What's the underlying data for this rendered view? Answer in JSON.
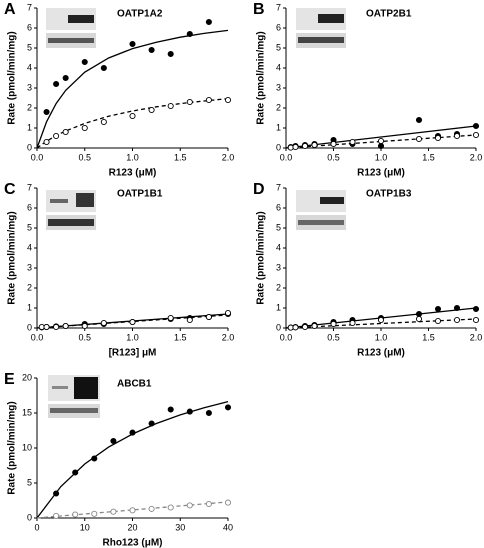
{
  "chart_data": [
    {
      "type": "scatter",
      "letter": "A",
      "title": "OATP1A2",
      "x_label": "R123 (μM)",
      "y_label": "Rate (pmol/min/mg)",
      "x": [
        0.1,
        0.2,
        0.3,
        0.5,
        0.7,
        1.0,
        1.2,
        1.4,
        1.6,
        1.8,
        2.0
      ],
      "series": [
        {
          "marker": "filled",
          "color": "#000000",
          "values": [
            1.8,
            3.2,
            3.5,
            4.3,
            4.0,
            5.2,
            4.9,
            4.7,
            5.7,
            6.3,
            null
          ]
        },
        {
          "marker": "open",
          "color": "#000000",
          "values": [
            0.3,
            0.6,
            0.8,
            1.0,
            1.3,
            1.6,
            1.9,
            2.1,
            2.3,
            2.4,
            2.4
          ]
        }
      ],
      "fits": [
        {
          "dashed": false,
          "color": "#000000",
          "x": [
            0,
            0.1,
            0.2,
            0.3,
            0.5,
            0.75,
            1,
            1.25,
            1.5,
            1.75,
            2
          ],
          "values": [
            0,
            1.31,
            2.22,
            2.88,
            3.79,
            4.5,
            4.97,
            5.29,
            5.54,
            5.73,
            5.88
          ]
        },
        {
          "dashed": true,
          "color": "#000000",
          "x": [
            0,
            0.1,
            0.2,
            0.3,
            0.5,
            0.75,
            1,
            1.25,
            1.5,
            1.75,
            2
          ],
          "values": [
            0,
            0.34,
            0.62,
            0.85,
            1.23,
            1.59,
            1.85,
            2.06,
            2.22,
            2.35,
            2.47
          ]
        }
      ],
      "xlim": [
        0,
        2
      ],
      "xticks": [
        {
          "value": 0,
          "label": "0.0"
        },
        0.5,
        {
          "value": 1,
          "label": "1.0"
        },
        1.5,
        {
          "value": 2,
          "label": "2.0"
        }
      ],
      "ylim": [
        0,
        7
      ],
      "yticks": [
        0,
        1,
        2,
        3,
        4,
        5,
        6,
        7
      ]
    },
    {
      "type": "scatter",
      "letter": "B",
      "title": "OATP2B1",
      "x_label": "R123 (μM)",
      "y_label": "Rate (pmol/min/mg)",
      "x": [
        0.05,
        0.1,
        0.2,
        0.3,
        0.5,
        0.7,
        1.0,
        1.4,
        1.6,
        1.8,
        2.0
      ],
      "series": [
        {
          "marker": "filled",
          "color": "#000000",
          "values": [
            0.05,
            0.1,
            0.15,
            0.2,
            0.4,
            0.2,
            0.1,
            1.4,
            0.6,
            0.7,
            1.1
          ]
        },
        {
          "marker": "open",
          "color": "#000000",
          "values": [
            0.02,
            0.05,
            0.1,
            0.15,
            0.2,
            0.3,
            0.35,
            0.45,
            0.5,
            0.6,
            0.65
          ]
        }
      ],
      "fits": [
        {
          "dashed": false,
          "color": "#000000",
          "x": [
            0,
            2
          ],
          "values": [
            0,
            1.1
          ]
        },
        {
          "dashed": true,
          "color": "#000000",
          "x": [
            0,
            2
          ],
          "values": [
            0,
            0.65
          ]
        }
      ],
      "xlim": [
        0,
        2
      ],
      "xticks": [
        {
          "value": 0,
          "label": "0.0"
        },
        0.5,
        {
          "value": 1,
          "label": "1.0"
        },
        1.5,
        {
          "value": 2,
          "label": "2.0"
        }
      ],
      "ylim": [
        0,
        7
      ],
      "yticks": [
        0,
        1,
        2,
        3,
        4,
        5,
        6,
        7
      ]
    },
    {
      "type": "scatter",
      "letter": "C",
      "title": "OATP1B1",
      "x_label": "[R123] μM",
      "y_label": "Rate (pmol/min/mg)",
      "x": [
        0.05,
        0.1,
        0.2,
        0.3,
        0.5,
        0.7,
        1.0,
        1.4,
        1.6,
        1.8,
        2.0
      ],
      "series": [
        {
          "marker": "filled",
          "color": "#000000",
          "values": [
            0.03,
            0.05,
            0.08,
            0.1,
            0.2,
            0.2,
            0.3,
            0.45,
            0.5,
            0.55,
            0.7
          ]
        },
        {
          "marker": "open",
          "color": "#000000",
          "values": [
            0.05,
            0.05,
            0.05,
            0.1,
            0.1,
            0.25,
            0.3,
            0.5,
            0.4,
            0.55,
            0.75
          ]
        }
      ],
      "fits": [
        {
          "dashed": false,
          "color": "#000000",
          "x": [
            0,
            2
          ],
          "values": [
            0,
            0.7
          ]
        },
        {
          "dashed": true,
          "color": "#000000",
          "x": [
            0,
            2
          ],
          "values": [
            0,
            0.65
          ]
        }
      ],
      "xlim": [
        0,
        2
      ],
      "xticks": [
        {
          "value": 0,
          "label": "0.0"
        },
        0.5,
        {
          "value": 1,
          "label": "1.0"
        },
        1.5,
        {
          "value": 2,
          "label": "2.0"
        }
      ],
      "ylim": [
        0,
        7
      ],
      "yticks": [
        0,
        1,
        2,
        3,
        4,
        5,
        6,
        7
      ]
    },
    {
      "type": "scatter",
      "letter": "D",
      "title": "OATP1B3",
      "x_label": "R123 (μM)",
      "y_label": "Rate (pmol/min/mg)",
      "x": [
        0.05,
        0.1,
        0.2,
        0.3,
        0.5,
        0.7,
        1.0,
        1.4,
        1.6,
        1.8,
        2.0
      ],
      "series": [
        {
          "marker": "filled",
          "color": "#000000",
          "values": [
            0.02,
            0.05,
            0.1,
            0.15,
            0.3,
            0.4,
            0.5,
            0.7,
            0.95,
            1.0,
            0.95
          ]
        },
        {
          "marker": "open",
          "color": "#000000",
          "values": [
            0.02,
            0.03,
            0.05,
            0.1,
            0.2,
            0.25,
            0.4,
            0.45,
            0.35,
            0.4,
            0.4
          ]
        }
      ],
      "fits": [
        {
          "dashed": false,
          "color": "#000000",
          "x": [
            0,
            2
          ],
          "values": [
            0,
            1.0
          ]
        },
        {
          "dashed": true,
          "color": "#000000",
          "x": [
            0,
            2
          ],
          "values": [
            0,
            0.45
          ]
        }
      ],
      "xlim": [
        0,
        2
      ],
      "xticks": [
        {
          "value": 0,
          "label": "0.0"
        },
        0.5,
        {
          "value": 1,
          "label": "1.0"
        },
        1.5,
        {
          "value": 2,
          "label": "2.0"
        }
      ],
      "ylim": [
        0,
        7
      ],
      "yticks": [
        0,
        1,
        2,
        3,
        4,
        5,
        6,
        7
      ]
    },
    {
      "type": "scatter",
      "letter": "E",
      "title": "ABCB1",
      "x_label": "Rho123 (μM)",
      "y_label": "Rate (pmol/min/mg)",
      "x": [
        4,
        8,
        12,
        16,
        20,
        24,
        28,
        32,
        36,
        40
      ],
      "series": [
        {
          "marker": "filled",
          "color": "#000000",
          "values": [
            3.5,
            6.5,
            8.5,
            11,
            12.2,
            13.5,
            15.5,
            15.2,
            15,
            15.8
          ]
        },
        {
          "marker": "open",
          "color": "#888888",
          "values": [
            0.3,
            0.5,
            0.6,
            0.9,
            1.1,
            1.3,
            1.5,
            1.8,
            2.0,
            2.2
          ]
        }
      ],
      "fits": [
        {
          "dashed": false,
          "color": "#000000",
          "x": [
            0,
            5,
            10,
            15,
            20,
            25,
            30,
            35,
            40
          ],
          "values": [
            0,
            4.5,
            7.71,
            10.13,
            12,
            13.5,
            14.73,
            15.75,
            16.62
          ]
        },
        {
          "dashed": true,
          "color": "#888888",
          "x": [
            0,
            40
          ],
          "values": [
            0,
            2.3
          ]
        }
      ],
      "xlim": [
        0,
        40
      ],
      "xticks": [
        0,
        10,
        20,
        30,
        40
      ],
      "ylim": [
        0,
        20
      ],
      "yticks": [
        0,
        5,
        10,
        15,
        20
      ]
    }
  ]
}
